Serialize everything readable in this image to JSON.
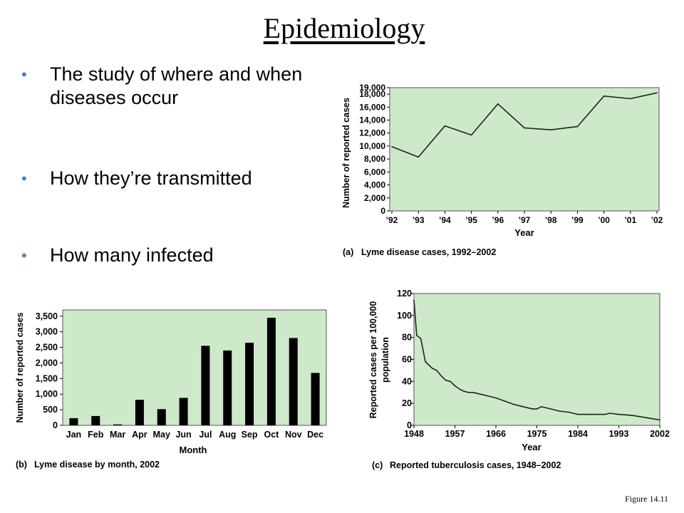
{
  "slide": {
    "title": "Epidemiology",
    "bullets": [
      "The study of where and when diseases occur",
      "How they’re transmitted",
      "How many infected"
    ],
    "figure_ref": "Figure 14.11",
    "colors": {
      "plot_bg": "#cde9c9",
      "bar": "#000000",
      "line": "#222222",
      "bullet": "#4f81bd"
    }
  },
  "chart_data": [
    {
      "id": "a",
      "type": "line",
      "caption_letter": "(a)",
      "caption_text": "Lyme disease cases, 1992–2002",
      "xlabel": "Year",
      "ylabel": "Number of reported cases",
      "x_ticks": [
        "’92",
        "’93",
        "’94",
        "’95",
        "’96",
        "’97",
        "’98",
        "’99",
        "’00",
        "’01",
        "’02"
      ],
      "y_ticks": [
        "19,000",
        "18,000",
        "16,000",
        "14,000",
        "12,000",
        "10,000",
        "8,000",
        "6,000",
        "4,000",
        "2,000",
        "0"
      ],
      "y_tick_values": [
        19000,
        18000,
        16000,
        14000,
        12000,
        10000,
        8000,
        6000,
        4000,
        2000,
        0
      ],
      "ylim": [
        0,
        19000
      ],
      "values": [
        9900,
        8300,
        13100,
        11700,
        16500,
        12800,
        12500,
        13000,
        17700,
        17300,
        18200
      ]
    },
    {
      "id": "b",
      "type": "bar",
      "caption_letter": "(b)",
      "caption_text": "Lyme disease by month, 2002",
      "xlabel": "Month",
      "ylabel": "Number of reported cases",
      "categories": [
        "Jan",
        "Feb",
        "Mar",
        "Apr",
        "May",
        "Jun",
        "Jul",
        "Aug",
        "Sep",
        "Oct",
        "Nov",
        "Dec"
      ],
      "y_ticks": [
        "3,500",
        "3,000",
        "2,500",
        "2,000",
        "1,500",
        "1,000",
        "500",
        "0"
      ],
      "y_tick_values": [
        3500,
        3000,
        2500,
        2000,
        1500,
        1000,
        500,
        0
      ],
      "ylim": [
        0,
        3700
      ],
      "values": [
        230,
        300,
        30,
        820,
        520,
        880,
        2550,
        2400,
        2650,
        3450,
        2800,
        1680
      ]
    },
    {
      "id": "c",
      "type": "line",
      "caption_letter": "(c)",
      "caption_text": "Reported tuberculosis cases, 1948–2002",
      "xlabel": "Year",
      "ylabel_line1": "Reported cases per 100,000",
      "ylabel_line2": "population",
      "x_ticks": [
        "1948",
        "1957",
        "1966",
        "1975",
        "1984",
        "1993",
        "2002"
      ],
      "x_tick_values": [
        1948,
        1957,
        1966,
        1975,
        1984,
        1993,
        2002
      ],
      "y_ticks": [
        "120",
        "100",
        "80",
        "60",
        "40",
        "20",
        "0"
      ],
      "y_tick_values": [
        120,
        100,
        80,
        60,
        40,
        20,
        0
      ],
      "xlim": [
        1948,
        2002
      ],
      "ylim": [
        0,
        120
      ],
      "x": [
        1948,
        1948.6,
        1949.5,
        1950.5,
        1951,
        1952,
        1953,
        1954,
        1955,
        1956,
        1957,
        1958,
        1959,
        1960,
        1961,
        1962,
        1963,
        1964,
        1966,
        1968,
        1970,
        1972,
        1974,
        1975,
        1976,
        1978,
        1980,
        1982,
        1984,
        1986,
        1988,
        1989,
        1990,
        1991,
        1993,
        1996,
        1999,
        2002
      ],
      "y": [
        114,
        82,
        79,
        58,
        56,
        52,
        50,
        45,
        41,
        40,
        36,
        33,
        31,
        30,
        30,
        29,
        28,
        27,
        25,
        22,
        19,
        17,
        15,
        15,
        17,
        15,
        13,
        12,
        10,
        10,
        10,
        10,
        10,
        11,
        10,
        9,
        7,
        5
      ]
    }
  ]
}
